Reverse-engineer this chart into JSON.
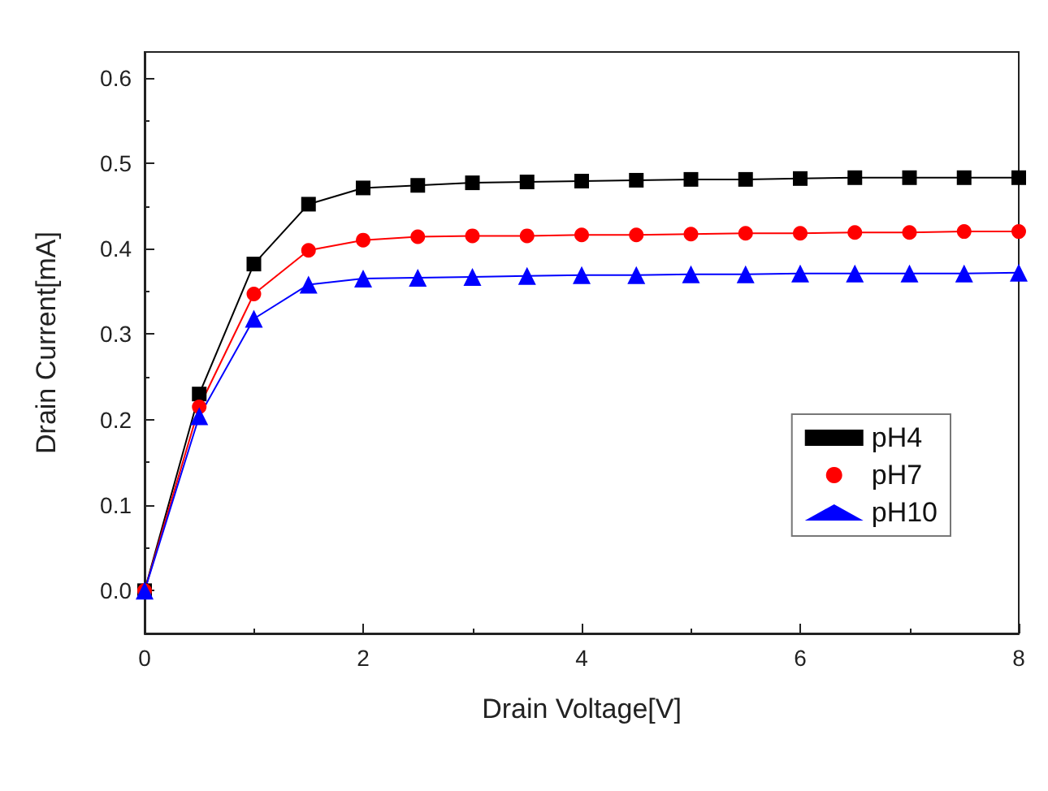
{
  "chart_data": {
    "type": "line",
    "xlabel": "Drain Voltage[V]",
    "ylabel": "Drain Current[mA]",
    "x": [
      0,
      0.5,
      1,
      1.5,
      2,
      2.5,
      3,
      3.5,
      4,
      4.5,
      5,
      5.5,
      6,
      6.5,
      7,
      7.5,
      8
    ],
    "series": [
      {
        "name": "pH4",
        "color": "#000000",
        "marker": "square",
        "values": [
          0,
          0.23,
          0.382,
          0.452,
          0.471,
          0.474,
          0.477,
          0.478,
          0.479,
          0.48,
          0.481,
          0.481,
          0.482,
          0.483,
          0.483,
          0.483,
          0.483
        ]
      },
      {
        "name": "pH7",
        "color": "#ff0000",
        "marker": "circle",
        "values": [
          0,
          0.215,
          0.347,
          0.398,
          0.41,
          0.414,
          0.415,
          0.415,
          0.416,
          0.416,
          0.417,
          0.418,
          0.418,
          0.419,
          0.419,
          0.42,
          0.42
        ]
      },
      {
        "name": "pH10",
        "color": "#0000ff",
        "marker": "triangle",
        "values": [
          0,
          0.204,
          0.318,
          0.358,
          0.365,
          0.366,
          0.367,
          0.368,
          0.369,
          0.369,
          0.37,
          0.37,
          0.371,
          0.371,
          0.371,
          0.371,
          0.372
        ]
      }
    ],
    "xlim": [
      0,
      8
    ],
    "xticks": [
      0,
      2,
      4,
      6,
      8
    ],
    "ylim": [
      -0.05,
      0.63
    ],
    "yticks": [
      {
        "value": 0,
        "label": "0.0"
      },
      0.1,
      0.2,
      0.3,
      0.4,
      0.5,
      0.6
    ],
    "grid": false,
    "legend": "right",
    "line_style": "solid"
  }
}
